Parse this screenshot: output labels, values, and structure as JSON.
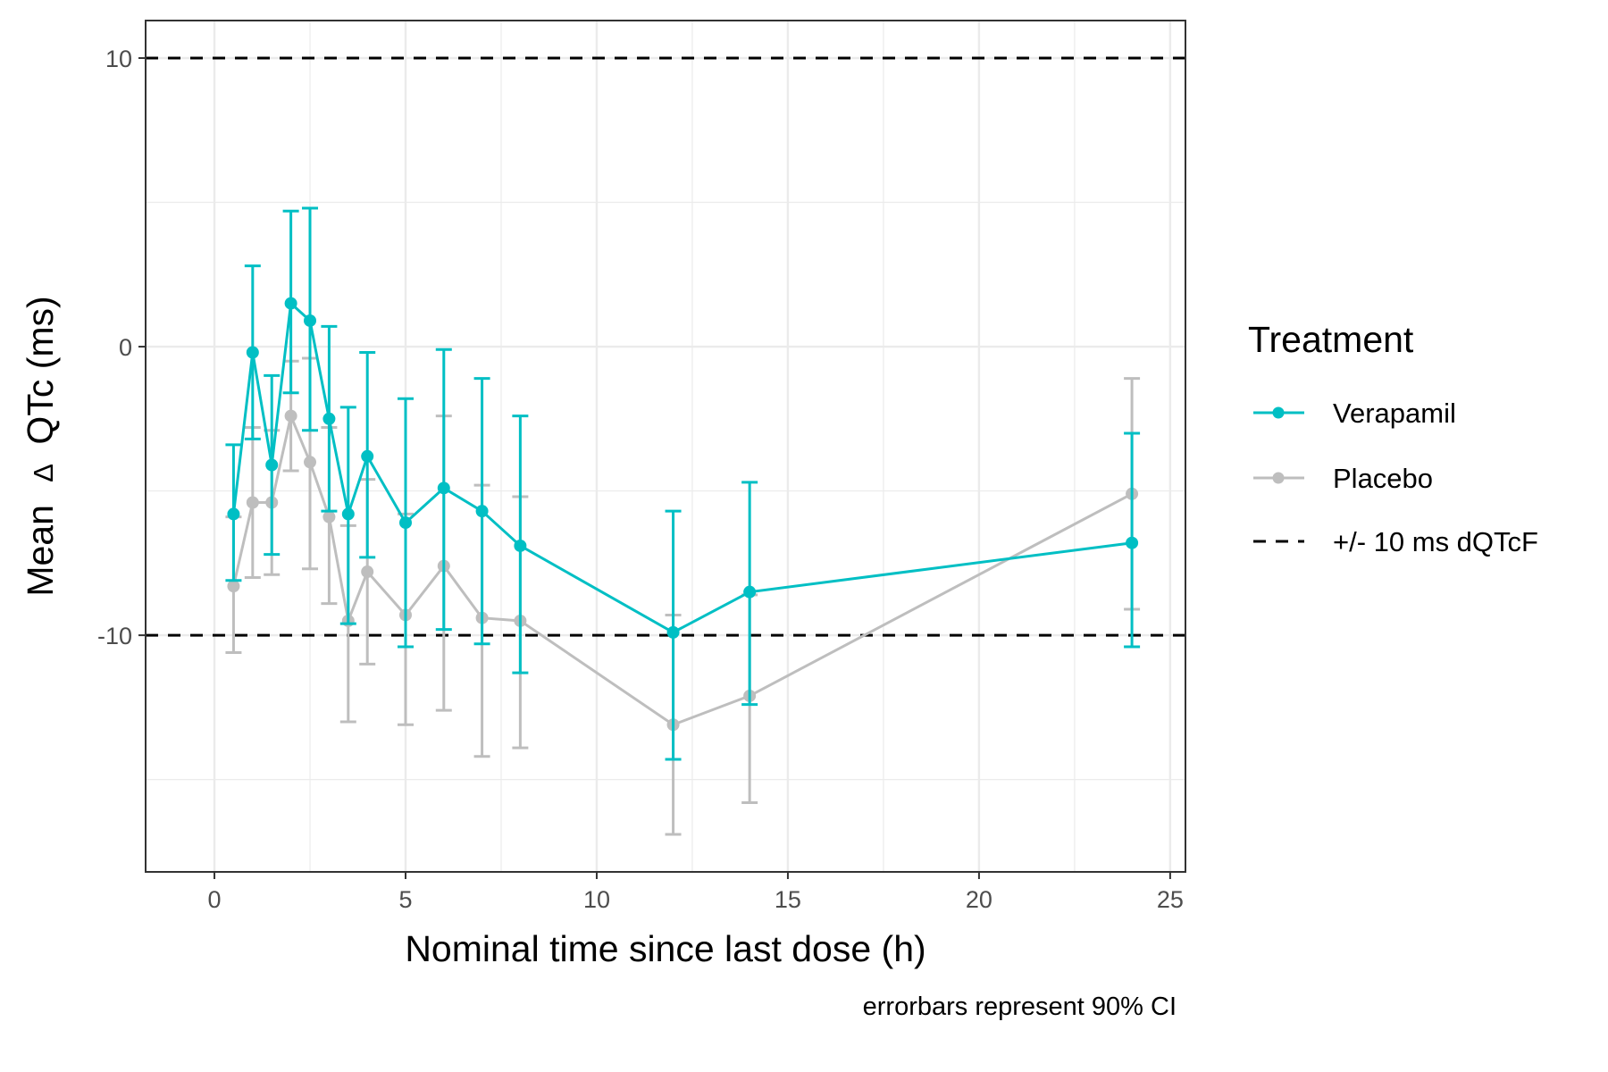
{
  "chart_data": {
    "type": "line",
    "title": "",
    "xlabel": "Nominal time since last dose (h)",
    "ylabel_prefix": "Mean",
    "ylabel_symbol": "Δ",
    "ylabel_suffix": "QTc (ms)",
    "caption": "errorbars represent 90% CI",
    "xlim": [
      -1.8,
      25.4
    ],
    "ylim": [
      -18.2,
      11.3
    ],
    "x_ticks": [
      0,
      5,
      10,
      15,
      20,
      25
    ],
    "x_tick_labels": [
      "0",
      "5",
      "10",
      "15",
      "20",
      "25"
    ],
    "y_ticks": [
      -10,
      0,
      10
    ],
    "y_tick_labels": [
      "-10",
      "0",
      "10"
    ],
    "grid": true,
    "reference_lines": [
      10,
      -10
    ],
    "legend": {
      "title": "Treatment",
      "position": "right",
      "entries": [
        "Verapamil",
        "Placebo",
        "+/- 10 ms dQTcF"
      ]
    },
    "series": [
      {
        "name": "Placebo",
        "color": "#bebebe",
        "points": [
          {
            "x": 0.5,
            "y": -8.3,
            "lo": -10.6,
            "hi": -5.9
          },
          {
            "x": 1.0,
            "y": -5.4,
            "lo": -8.0,
            "hi": -2.8
          },
          {
            "x": 1.5,
            "y": -5.4,
            "lo": -7.9,
            "hi": -2.9
          },
          {
            "x": 2.0,
            "y": -2.4,
            "lo": -4.3,
            "hi": -0.5
          },
          {
            "x": 2.5,
            "y": -4.0,
            "lo": -7.7,
            "hi": -0.4
          },
          {
            "x": 3.0,
            "y": -5.9,
            "lo": -8.9,
            "hi": -2.8
          },
          {
            "x": 3.5,
            "y": -9.5,
            "lo": -13.0,
            "hi": -6.2
          },
          {
            "x": 4.0,
            "y": -7.8,
            "lo": -11.0,
            "hi": -4.6
          },
          {
            "x": 5.0,
            "y": -9.3,
            "lo": -13.1,
            "hi": -5.8
          },
          {
            "x": 6.0,
            "y": -7.6,
            "lo": -12.6,
            "hi": -2.4
          },
          {
            "x": 7.0,
            "y": -9.4,
            "lo": -14.2,
            "hi": -4.8
          },
          {
            "x": 8.0,
            "y": -9.5,
            "lo": -13.9,
            "hi": -5.2
          },
          {
            "x": 12.0,
            "y": -13.1,
            "lo": -16.9,
            "hi": -9.3
          },
          {
            "x": 14.0,
            "y": -12.1,
            "lo": -15.8,
            "hi": -8.6
          },
          {
            "x": 24.0,
            "y": -5.1,
            "lo": -9.1,
            "hi": -1.1
          }
        ]
      },
      {
        "name": "Verapamil",
        "color": "#00bfc4",
        "points": [
          {
            "x": 0.5,
            "y": -5.8,
            "lo": -8.1,
            "hi": -3.4
          },
          {
            "x": 1.0,
            "y": -0.2,
            "lo": -3.2,
            "hi": 2.8
          },
          {
            "x": 1.5,
            "y": -4.1,
            "lo": -7.2,
            "hi": -1.0
          },
          {
            "x": 2.0,
            "y": 1.5,
            "lo": -1.6,
            "hi": 4.7
          },
          {
            "x": 2.5,
            "y": 0.9,
            "lo": -2.9,
            "hi": 4.8
          },
          {
            "x": 3.0,
            "y": -2.5,
            "lo": -5.7,
            "hi": 0.7
          },
          {
            "x": 3.5,
            "y": -5.8,
            "lo": -9.6,
            "hi": -2.1
          },
          {
            "x": 4.0,
            "y": -3.8,
            "lo": -7.3,
            "hi": -0.2
          },
          {
            "x": 5.0,
            "y": -6.1,
            "lo": -10.4,
            "hi": -1.8
          },
          {
            "x": 6.0,
            "y": -4.9,
            "lo": -9.8,
            "hi": -0.1
          },
          {
            "x": 7.0,
            "y": -5.7,
            "lo": -10.3,
            "hi": -1.1
          },
          {
            "x": 8.0,
            "y": -6.9,
            "lo": -11.3,
            "hi": -2.4
          },
          {
            "x": 12.0,
            "y": -9.9,
            "lo": -14.3,
            "hi": -5.7
          },
          {
            "x": 14.0,
            "y": -8.5,
            "lo": -12.4,
            "hi": -4.7
          },
          {
            "x": 24.0,
            "y": -6.8,
            "lo": -10.4,
            "hi": -3.0
          }
        ]
      }
    ]
  }
}
